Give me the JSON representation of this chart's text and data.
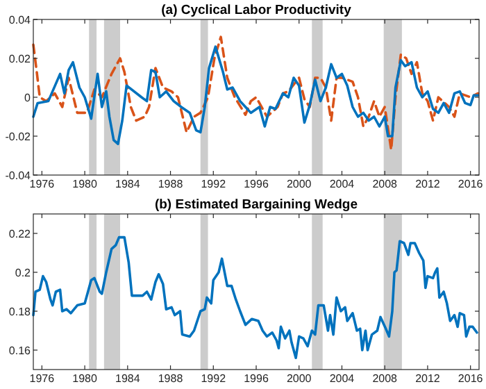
{
  "chart_data": [
    {
      "type": "line",
      "title": "(a) Cyclical Labor Productivity",
      "xlim": [
        1975.2,
        2016.8
      ],
      "xticks": [
        1976,
        1980,
        1984,
        1988,
        1992,
        1996,
        2000,
        2004,
        2008,
        2012,
        2016
      ],
      "ylim": [
        -0.04,
        0.04
      ],
      "yticks": [
        -0.04,
        -0.02,
        0,
        0.02,
        0.04
      ],
      "grid": false,
      "bands": [
        {
          "axis": "x",
          "from": 1980.4,
          "to": 1981.1,
          "color": "#cccccc"
        },
        {
          "axis": "x",
          "from": 1981.8,
          "to": 1983.3,
          "color": "#cccccc"
        },
        {
          "axis": "x",
          "from": 1990.8,
          "to": 1991.5,
          "color": "#cccccc"
        },
        {
          "axis": "x",
          "from": 2001.2,
          "to": 2002.2,
          "color": "#cccccc"
        },
        {
          "axis": "x",
          "from": 2007.9,
          "to": 2009.6,
          "color": "#cccccc"
        }
      ],
      "series": [
        {
          "color": "#d95319",
          "line_style": "dashed",
          "x": [
            1975.2,
            1975.5,
            1975.8,
            1976.4,
            1977.2,
            1977.9,
            1978.5,
            1979.3,
            1980.2,
            1980.9,
            1981.6,
            1982.5,
            1983.3,
            1983.7,
            1984.3,
            1984.8,
            1985.6,
            1986.0,
            1986.6,
            1987.3,
            1988.1,
            1988.7,
            1989.5,
            1990.2,
            1990.8,
            1991.5,
            1992.1,
            1992.7,
            1993.3,
            1994.0,
            1995.0,
            1995.5,
            1996.0,
            1997.0,
            1998.0,
            1998.5,
            1999.0,
            2000.0,
            2000.5,
            2001.0,
            2001.5,
            2002.0,
            2002.5,
            2003.0,
            2003.5,
            2004.0,
            2005.0,
            2005.5,
            2006.0,
            2006.5,
            2007.0,
            2007.5,
            2008.0,
            2008.6,
            2009.0,
            2009.5,
            2010.0,
            2010.5,
            2011.0,
            2011.5,
            2012.0,
            2012.5,
            2013.0,
            2014.0,
            2014.5,
            2015.0,
            2016.0,
            2016.7
          ],
          "values": [
            0.027,
            0.014,
            0,
            -0.002,
            0.002,
            -0.005,
            0.01,
            -0.008,
            -0.008,
            0.004,
            0,
            0.012,
            0.02,
            0.013,
            -0.005,
            -0.012,
            -0.01,
            -0.005,
            0.015,
            0.005,
            0.003,
            0,
            -0.018,
            -0.01,
            -0.008,
            0,
            0.02,
            0.031,
            0.01,
            0,
            -0.009,
            -0.002,
            0,
            -0.01,
            -0.005,
            0.002,
            0.003,
            0.01,
            -0.001,
            -0.005,
            0.01,
            0.01,
            0.005,
            -0.012,
            0.01,
            0.01,
            0.008,
            0,
            -0.015,
            -0.01,
            -0.002,
            -0.01,
            -0.005,
            -0.027,
            0,
            0.022,
            0.02,
            0.012,
            0.018,
            0.002,
            -0.002,
            -0.012,
            0,
            -0.005,
            -0.01,
            0.002,
            0,
            0.002
          ]
        },
        {
          "color": "#0072bd",
          "line_style": "solid",
          "x": [
            1975.2,
            1975.6,
            1976.6,
            1977.7,
            1978.1,
            1978.5,
            1978.9,
            1979.5,
            1980.0,
            1980.6,
            1981.2,
            1981.6,
            1982.0,
            1982.3,
            1982.7,
            1983.1,
            1983.5,
            1983.9,
            1985.3,
            1985.8,
            1986.2,
            1986.6,
            1987.0,
            1987.6,
            1988.3,
            1989.0,
            1989.8,
            1990.4,
            1990.8,
            1991.2,
            1991.6,
            1992.2,
            1992.9,
            1993.3,
            1993.8,
            1994.5,
            1995.0,
            1995.5,
            1996.3,
            1996.8,
            1997.3,
            1997.8,
            1998.5,
            1999.0,
            1999.5,
            2000.0,
            2000.5,
            2001.0,
            2001.5,
            2002.0,
            2002.5,
            2003.0,
            2003.5,
            2004.0,
            2004.5,
            2005.0,
            2005.5,
            2006.0,
            2006.5,
            2007.0,
            2007.5,
            2008.0,
            2008.3,
            2008.7,
            2009.0,
            2009.5,
            2009.9,
            2010.5,
            2011.0,
            2011.5,
            2012.0,
            2012.5,
            2013.0,
            2013.5,
            2014.0,
            2014.5,
            2015.0,
            2015.5,
            2016.0,
            2016.3,
            2016.7
          ],
          "values": [
            -0.01,
            -0.003,
            -0.002,
            0.012,
            0.002,
            0.014,
            0.018,
            0.005,
            0,
            -0.011,
            0.012,
            -0.005,
            0.003,
            -0.01,
            -0.022,
            -0.024,
            -0.012,
            0.006,
            0,
            -0.002,
            0.014,
            0.013,
            0,
            0.003,
            -0.002,
            -0.005,
            -0.008,
            -0.017,
            -0.018,
            -0.005,
            0.015,
            0.026,
            0.013,
            0.004,
            0.005,
            -0.002,
            -0.005,
            -0.008,
            -0.005,
            -0.015,
            -0.005,
            -0.006,
            0.002,
            0,
            0.01,
            0.006,
            -0.013,
            -0.004,
            0.009,
            -0.002,
            0.005,
            0.017,
            0.01,
            0.012,
            0.006,
            -0.005,
            -0.01,
            -0.008,
            -0.012,
            -0.01,
            -0.015,
            -0.01,
            -0.02,
            -0.02,
            0.005,
            0.019,
            0.016,
            0.018,
            0.005,
            0,
            0.003,
            -0.006,
            -0.008,
            -0.003,
            -0.008,
            0.002,
            0.003,
            -0.003,
            -0.004,
            0.001,
            0.001
          ]
        }
      ]
    },
    {
      "type": "line",
      "title": "(b) Estimated Bargaining Wedge",
      "xlim": [
        1975.2,
        2016.8
      ],
      "xticks": [
        1976,
        1980,
        1984,
        1988,
        1992,
        1996,
        2000,
        2004,
        2008,
        2012,
        2016
      ],
      "ylim": [
        0.15,
        0.23
      ],
      "yticks": [
        0.16,
        0.18,
        0.2,
        0.22
      ],
      "grid": false,
      "bands": [
        {
          "axis": "x",
          "from": 1980.4,
          "to": 1981.1,
          "color": "#cccccc"
        },
        {
          "axis": "x",
          "from": 1981.8,
          "to": 1983.3,
          "color": "#cccccc"
        },
        {
          "axis": "x",
          "from": 1990.8,
          "to": 1991.5,
          "color": "#cccccc"
        },
        {
          "axis": "x",
          "from": 2001.2,
          "to": 2002.2,
          "color": "#cccccc"
        },
        {
          "axis": "x",
          "from": 2007.9,
          "to": 2009.6,
          "color": "#cccccc"
        }
      ],
      "series": [
        {
          "color": "#0072bd",
          "line_style": "solid",
          "x": [
            1975.2,
            1975.4,
            1975.8,
            1976.1,
            1976.4,
            1976.8,
            1977.0,
            1977.3,
            1977.7,
            1977.9,
            1978.3,
            1978.7,
            1979.3,
            1980.0,
            1980.6,
            1980.9,
            1981.4,
            1981.6,
            1982.0,
            1982.5,
            1982.9,
            1983.2,
            1983.7,
            1984.1,
            1984.4,
            1985.4,
            1985.8,
            1986.2,
            1986.6,
            1986.9,
            1987.3,
            1987.6,
            1988.1,
            1988.4,
            1988.9,
            1989.1,
            1989.8,
            1990.2,
            1990.8,
            1991.2,
            1991.4,
            1991.8,
            1992.0,
            1992.5,
            1992.8,
            1993.3,
            1993.7,
            1994.1,
            1994.5,
            1995.0,
            1995.6,
            1996.2,
            1996.6,
            1997.0,
            1997.5,
            1997.9,
            1998.1,
            1998.3,
            1998.7,
            1999.1,
            1999.3,
            1999.7,
            2000.0,
            2000.4,
            2000.8,
            2001.2,
            2001.5,
            2001.8,
            2002.3,
            2002.7,
            2002.9,
            2003.2,
            2003.5,
            2003.9,
            2004.3,
            2004.5,
            2005.0,
            2005.4,
            2005.7,
            2005.9,
            2006.2,
            2006.4,
            2006.8,
            2007.3,
            2007.6,
            2008.1,
            2008.4,
            2008.7,
            2008.9,
            2009.1,
            2009.4,
            2009.8,
            2010.2,
            2010.4,
            2010.8,
            2011.2,
            2011.6,
            2011.8,
            2012.0,
            2012.5,
            2012.7,
            2012.9,
            2013.1,
            2013.5,
            2013.8,
            2014.1,
            2014.5,
            2014.8,
            2015.0,
            2015.4,
            2015.6,
            2015.9,
            2016.2,
            2016.6
          ],
          "values": [
            0.178,
            0.19,
            0.191,
            0.198,
            0.195,
            0.186,
            0.183,
            0.19,
            0.191,
            0.18,
            0.181,
            0.179,
            0.183,
            0.184,
            0.196,
            0.197,
            0.19,
            0.189,
            0.2,
            0.212,
            0.214,
            0.218,
            0.218,
            0.205,
            0.188,
            0.188,
            0.19,
            0.186,
            0.195,
            0.199,
            0.194,
            0.181,
            0.182,
            0.178,
            0.18,
            0.168,
            0.167,
            0.17,
            0.18,
            0.181,
            0.187,
            0.184,
            0.196,
            0.2,
            0.207,
            0.193,
            0.193,
            0.186,
            0.18,
            0.173,
            0.176,
            0.175,
            0.17,
            0.167,
            0.169,
            0.165,
            0.161,
            0.172,
            0.166,
            0.17,
            0.164,
            0.156,
            0.167,
            0.166,
            0.162,
            0.17,
            0.168,
            0.183,
            0.183,
            0.17,
            0.178,
            0.168,
            0.187,
            0.18,
            0.182,
            0.175,
            0.179,
            0.17,
            0.171,
            0.16,
            0.17,
            0.16,
            0.168,
            0.17,
            0.177,
            0.171,
            0.167,
            0.18,
            0.2,
            0.201,
            0.216,
            0.215,
            0.209,
            0.215,
            0.215,
            0.21,
            0.206,
            0.192,
            0.198,
            0.197,
            0.2,
            0.202,
            0.187,
            0.19,
            0.184,
            0.175,
            0.178,
            0.172,
            0.179,
            0.178,
            0.167,
            0.172,
            0.172,
            0.169
          ]
        }
      ]
    }
  ]
}
